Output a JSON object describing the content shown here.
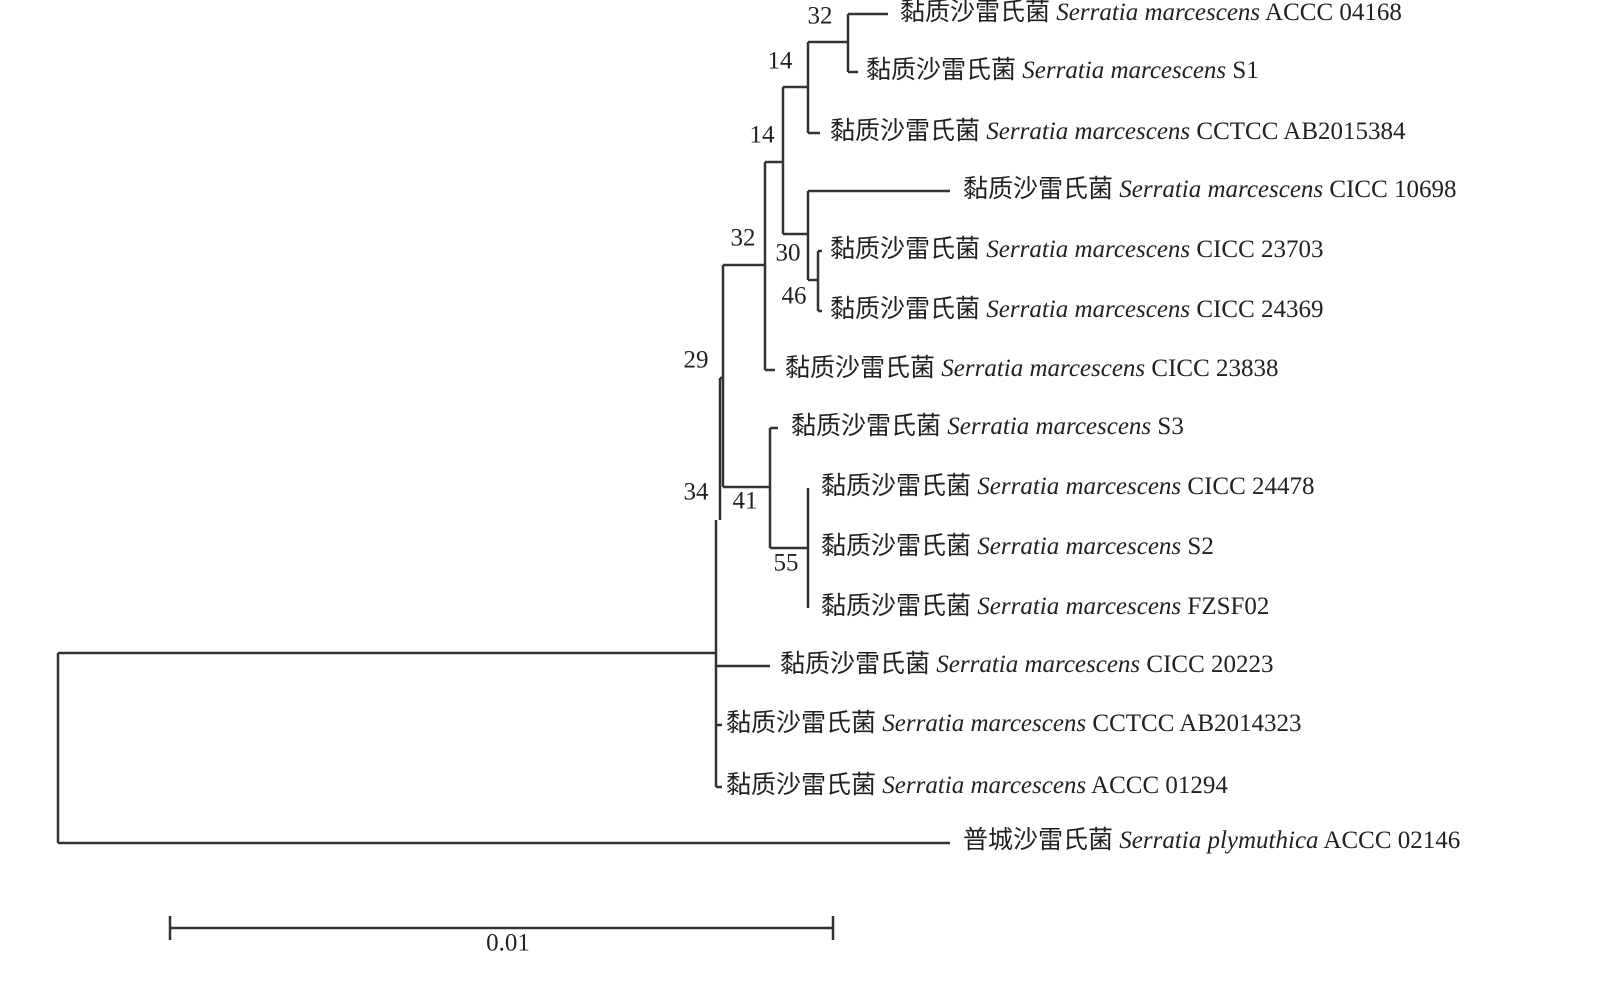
{
  "tree": {
    "leaves": [
      {
        "common_name": "黏质沙雷氏菌",
        "species": "Serratia marcescens",
        "strain": "ACCC 04168"
      },
      {
        "common_name": "黏质沙雷氏菌",
        "species": "Serratia marcescens",
        "strain": "S1"
      },
      {
        "common_name": "黏质沙雷氏菌",
        "species": "Serratia marcescens",
        "strain": "CCTCC AB2015384"
      },
      {
        "common_name": "黏质沙雷氏菌",
        "species": "Serratia marcescens",
        "strain": "CICC 10698"
      },
      {
        "common_name": "黏质沙雷氏菌",
        "species": "Serratia marcescens",
        "strain": "CICC 23703"
      },
      {
        "common_name": "黏质沙雷氏菌",
        "species": "Serratia marcescens",
        "strain": "CICC 24369"
      },
      {
        "common_name": "黏质沙雷氏菌",
        "species": "Serratia marcescens",
        "strain": "CICC 23838"
      },
      {
        "common_name": "黏质沙雷氏菌",
        "species": "Serratia marcescens",
        "strain": "S3"
      },
      {
        "common_name": "黏质沙雷氏菌",
        "species": "Serratia marcescens",
        "strain": "CICC 24478"
      },
      {
        "common_name": "黏质沙雷氏菌",
        "species": "Serratia marcescens",
        "strain": "S2"
      },
      {
        "common_name": "黏质沙雷氏菌",
        "species": "Serratia marcescens",
        "strain": "FZSF02"
      },
      {
        "common_name": "黏质沙雷氏菌",
        "species": "Serratia marcescens",
        "strain": "CICC 20223"
      },
      {
        "common_name": "黏质沙雷氏菌",
        "species": "Serratia marcescens",
        "strain": "CCTCC AB2014323"
      },
      {
        "common_name": "黏质沙雷氏菌",
        "species": "Serratia marcescens",
        "strain": "ACCC 01294"
      },
      {
        "common_name": "普城沙雷氏菌",
        "species": "Serratia plymuthica",
        "strain": "ACCC 02146"
      }
    ],
    "support": [
      32,
      14,
      14,
      32,
      30,
      46,
      29,
      34,
      41,
      55
    ],
    "scale_bar": {
      "label": "0.01"
    }
  }
}
